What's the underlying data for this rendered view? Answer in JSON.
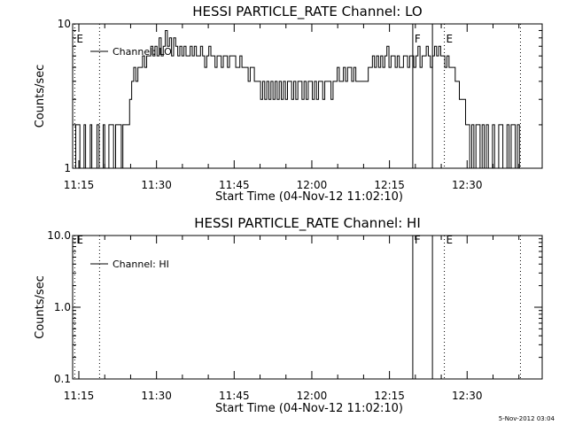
{
  "chart_data": [
    {
      "type": "line",
      "title": "HESSI PARTICLE_RATE Channel: LO",
      "xlabel": "Start Time (04-Nov-12 11:02:10)",
      "ylabel": "Counts/sec",
      "yscale": "log",
      "ylim": [
        1,
        10
      ],
      "xlim_minutes": [
        11.8,
        102.5
      ],
      "yticks": [
        {
          "value": 1,
          "label": "1"
        },
        {
          "value": 10,
          "label": "10"
        }
      ],
      "xticks": [
        {
          "t": 13,
          "label": "11:15"
        },
        {
          "t": 28,
          "label": "11:30"
        },
        {
          "t": 43,
          "label": "11:45"
        },
        {
          "t": 58,
          "label": "12:00"
        },
        {
          "t": 73,
          "label": "12:15"
        },
        {
          "t": 88,
          "label": "12:30"
        }
      ],
      "legend": {
        "label": "Channel: LO",
        "placement": "top-left"
      },
      "markers": [
        {
          "t": 12.2,
          "label": "E",
          "style": "dotted"
        },
        {
          "t": 17.0,
          "label": "",
          "style": "dotted"
        },
        {
          "t": 77.5,
          "label": "F",
          "style": "solid"
        },
        {
          "t": 81.3,
          "label": "",
          "style": "solid"
        },
        {
          "t": 83.6,
          "label": "E",
          "style": "dotted"
        },
        {
          "t": 98.3,
          "label": "",
          "style": "dotted"
        }
      ],
      "series": [
        {
          "values": [
            [
              12.0,
              1
            ],
            [
              12.4,
              2
            ],
            [
              12.9,
              2
            ],
            [
              13.2,
              1
            ],
            [
              13.7,
              1
            ],
            [
              14.0,
              2
            ],
            [
              14.3,
              1
            ],
            [
              14.9,
              1
            ],
            [
              15.2,
              2
            ],
            [
              15.5,
              1
            ],
            [
              16.1,
              1
            ],
            [
              16.5,
              2
            ],
            [
              16.9,
              1
            ],
            [
              17.4,
              1
            ],
            [
              17.7,
              2
            ],
            [
              18.0,
              1
            ],
            [
              18.5,
              1
            ],
            [
              18.8,
              2
            ],
            [
              19.4,
              2
            ],
            [
              19.7,
              1
            ],
            [
              20.1,
              2
            ],
            [
              20.9,
              2
            ],
            [
              21.2,
              1
            ],
            [
              21.5,
              2
            ],
            [
              22.4,
              2
            ],
            [
              22.8,
              3
            ],
            [
              23.2,
              4
            ],
            [
              23.6,
              5
            ],
            [
              24.0,
              4
            ],
            [
              24.4,
              5
            ],
            [
              24.9,
              5
            ],
            [
              25.3,
              6
            ],
            [
              25.7,
              5
            ],
            [
              26.1,
              6
            ],
            [
              26.5,
              6
            ],
            [
              26.9,
              7
            ],
            [
              27.3,
              6
            ],
            [
              27.7,
              7
            ],
            [
              28.1,
              6
            ],
            [
              28.5,
              8
            ],
            [
              28.9,
              6
            ],
            [
              29.3,
              7
            ],
            [
              29.7,
              9
            ],
            [
              30.1,
              7
            ],
            [
              30.5,
              8
            ],
            [
              30.9,
              6
            ],
            [
              31.3,
              8
            ],
            [
              31.7,
              7
            ],
            [
              32.1,
              6
            ],
            [
              32.5,
              7
            ],
            [
              32.9,
              6
            ],
            [
              33.3,
              7
            ],
            [
              33.7,
              6
            ],
            [
              34.1,
              6
            ],
            [
              34.5,
              7
            ],
            [
              34.9,
              6
            ],
            [
              35.3,
              7
            ],
            [
              35.7,
              6
            ],
            [
              36.1,
              6
            ],
            [
              36.5,
              7
            ],
            [
              36.9,
              6
            ],
            [
              37.3,
              5
            ],
            [
              37.7,
              6
            ],
            [
              38.1,
              7
            ],
            [
              38.5,
              6
            ],
            [
              38.9,
              6
            ],
            [
              39.3,
              5
            ],
            [
              39.7,
              6
            ],
            [
              40.1,
              6
            ],
            [
              40.5,
              5
            ],
            [
              40.9,
              6
            ],
            [
              41.3,
              6
            ],
            [
              41.7,
              5
            ],
            [
              42.1,
              6
            ],
            [
              42.5,
              6
            ],
            [
              42.9,
              6
            ],
            [
              43.3,
              5
            ],
            [
              43.7,
              5
            ],
            [
              44.1,
              6
            ],
            [
              44.5,
              5
            ],
            [
              44.9,
              5
            ],
            [
              45.3,
              5
            ],
            [
              45.7,
              4
            ],
            [
              46.1,
              5
            ],
            [
              46.5,
              5
            ],
            [
              46.9,
              4
            ],
            [
              47.3,
              4
            ],
            [
              47.7,
              4
            ],
            [
              48.1,
              3
            ],
            [
              48.5,
              4
            ],
            [
              48.9,
              3
            ],
            [
              49.3,
              4
            ],
            [
              49.7,
              3
            ],
            [
              50.1,
              4
            ],
            [
              50.5,
              3
            ],
            [
              50.9,
              4
            ],
            [
              51.3,
              3
            ],
            [
              51.7,
              4
            ],
            [
              52.1,
              3
            ],
            [
              52.5,
              4
            ],
            [
              52.9,
              3
            ],
            [
              53.3,
              4
            ],
            [
              53.7,
              4
            ],
            [
              54.1,
              3
            ],
            [
              54.5,
              4
            ],
            [
              54.9,
              3
            ],
            [
              55.3,
              4
            ],
            [
              55.7,
              4
            ],
            [
              56.1,
              3
            ],
            [
              56.5,
              4
            ],
            [
              56.9,
              3
            ],
            [
              57.3,
              4
            ],
            [
              57.7,
              4
            ],
            [
              58.1,
              3
            ],
            [
              58.5,
              4
            ],
            [
              58.9,
              3
            ],
            [
              59.3,
              4
            ],
            [
              59.7,
              4
            ],
            [
              60.1,
              3
            ],
            [
              60.5,
              4
            ],
            [
              60.9,
              4
            ],
            [
              61.3,
              4
            ],
            [
              61.7,
              3
            ],
            [
              62.1,
              4
            ],
            [
              62.5,
              4
            ],
            [
              62.9,
              5
            ],
            [
              63.3,
              4
            ],
            [
              63.7,
              4
            ],
            [
              64.1,
              5
            ],
            [
              64.5,
              4
            ],
            [
              64.9,
              5
            ],
            [
              65.3,
              5
            ],
            [
              65.7,
              4
            ],
            [
              66.1,
              5
            ],
            [
              66.5,
              4
            ],
            [
              66.9,
              4
            ],
            [
              67.3,
              4
            ],
            [
              67.7,
              4
            ],
            [
              68.1,
              4
            ],
            [
              68.5,
              4
            ],
            [
              68.9,
              5
            ],
            [
              69.3,
              5
            ],
            [
              69.7,
              6
            ],
            [
              70.1,
              5
            ],
            [
              70.5,
              6
            ],
            [
              70.9,
              5
            ],
            [
              71.3,
              6
            ],
            [
              71.7,
              5
            ],
            [
              72.1,
              6
            ],
            [
              72.5,
              7
            ],
            [
              72.9,
              5
            ],
            [
              73.3,
              6
            ],
            [
              73.7,
              6
            ],
            [
              74.1,
              5
            ],
            [
              74.5,
              6
            ],
            [
              74.9,
              5
            ],
            [
              75.3,
              5
            ],
            [
              75.7,
              6
            ],
            [
              76.1,
              6
            ],
            [
              76.5,
              5
            ],
            [
              76.9,
              6
            ],
            [
              77.3,
              6
            ],
            [
              77.7,
              5
            ],
            [
              78.1,
              6
            ],
            [
              78.5,
              7
            ],
            [
              78.9,
              5
            ],
            [
              79.3,
              6
            ],
            [
              79.7,
              6
            ],
            [
              80.1,
              7
            ],
            [
              80.5,
              6
            ],
            [
              80.9,
              5
            ],
            [
              81.3,
              6
            ],
            [
              81.7,
              7
            ],
            [
              82.1,
              6
            ],
            [
              82.5,
              7
            ],
            [
              82.9,
              6
            ],
            [
              83.3,
              6
            ],
            [
              83.7,
              5
            ],
            [
              84.1,
              6
            ],
            [
              84.5,
              5
            ],
            [
              84.9,
              5
            ],
            [
              85.3,
              5
            ],
            [
              85.7,
              4
            ],
            [
              86.1,
              4
            ],
            [
              86.5,
              3
            ],
            [
              86.9,
              3
            ],
            [
              87.3,
              3
            ],
            [
              87.7,
              2
            ],
            [
              88.1,
              2
            ],
            [
              88.5,
              1
            ],
            [
              88.9,
              2
            ],
            [
              89.3,
              1
            ],
            [
              89.7,
              2
            ],
            [
              90.1,
              2
            ],
            [
              90.5,
              1
            ],
            [
              90.9,
              2
            ],
            [
              91.3,
              1
            ],
            [
              91.7,
              2
            ],
            [
              92.1,
              1
            ],
            [
              92.5,
              1
            ],
            [
              92.9,
              2
            ],
            [
              93.3,
              1
            ],
            [
              93.7,
              1
            ],
            [
              94.1,
              2
            ],
            [
              94.5,
              2
            ],
            [
              94.9,
              1
            ],
            [
              95.3,
              1
            ],
            [
              95.7,
              2
            ],
            [
              96.1,
              1
            ],
            [
              96.5,
              2
            ],
            [
              96.9,
              2
            ],
            [
              97.3,
              1
            ],
            [
              97.7,
              2
            ],
            [
              98.1,
              1
            ]
          ]
        }
      ]
    },
    {
      "type": "line",
      "title": "HESSI PARTICLE_RATE Channel: HI",
      "xlabel": "Start Time (04-Nov-12 11:02:10)",
      "ylabel": "Counts/sec",
      "yscale": "log",
      "ylim": [
        0.1,
        10
      ],
      "xlim_minutes": [
        11.8,
        102.5
      ],
      "yticks": [
        {
          "value": 0.1,
          "label": "0.1"
        },
        {
          "value": 1,
          "label": "1.0"
        },
        {
          "value": 10,
          "label": "10.0"
        }
      ],
      "xticks": [
        {
          "t": 13,
          "label": "11:15"
        },
        {
          "t": 28,
          "label": "11:30"
        },
        {
          "t": 43,
          "label": "11:45"
        },
        {
          "t": 58,
          "label": "12:00"
        },
        {
          "t": 73,
          "label": "12:15"
        },
        {
          "t": 88,
          "label": "12:30"
        }
      ],
      "legend": {
        "label": "Channel: HI",
        "placement": "top-left"
      },
      "markers": [
        {
          "t": 12.2,
          "label": "E",
          "style": "dotted"
        },
        {
          "t": 17.0,
          "label": "",
          "style": "dotted"
        },
        {
          "t": 77.5,
          "label": "F",
          "style": "solid"
        },
        {
          "t": 81.3,
          "label": "",
          "style": "solid"
        },
        {
          "t": 83.6,
          "label": "E",
          "style": "dotted"
        },
        {
          "t": 98.3,
          "label": "",
          "style": "dotted"
        }
      ],
      "series": []
    }
  ],
  "footer": {
    "timestamp": "5-Nov-2012 03:04"
  }
}
